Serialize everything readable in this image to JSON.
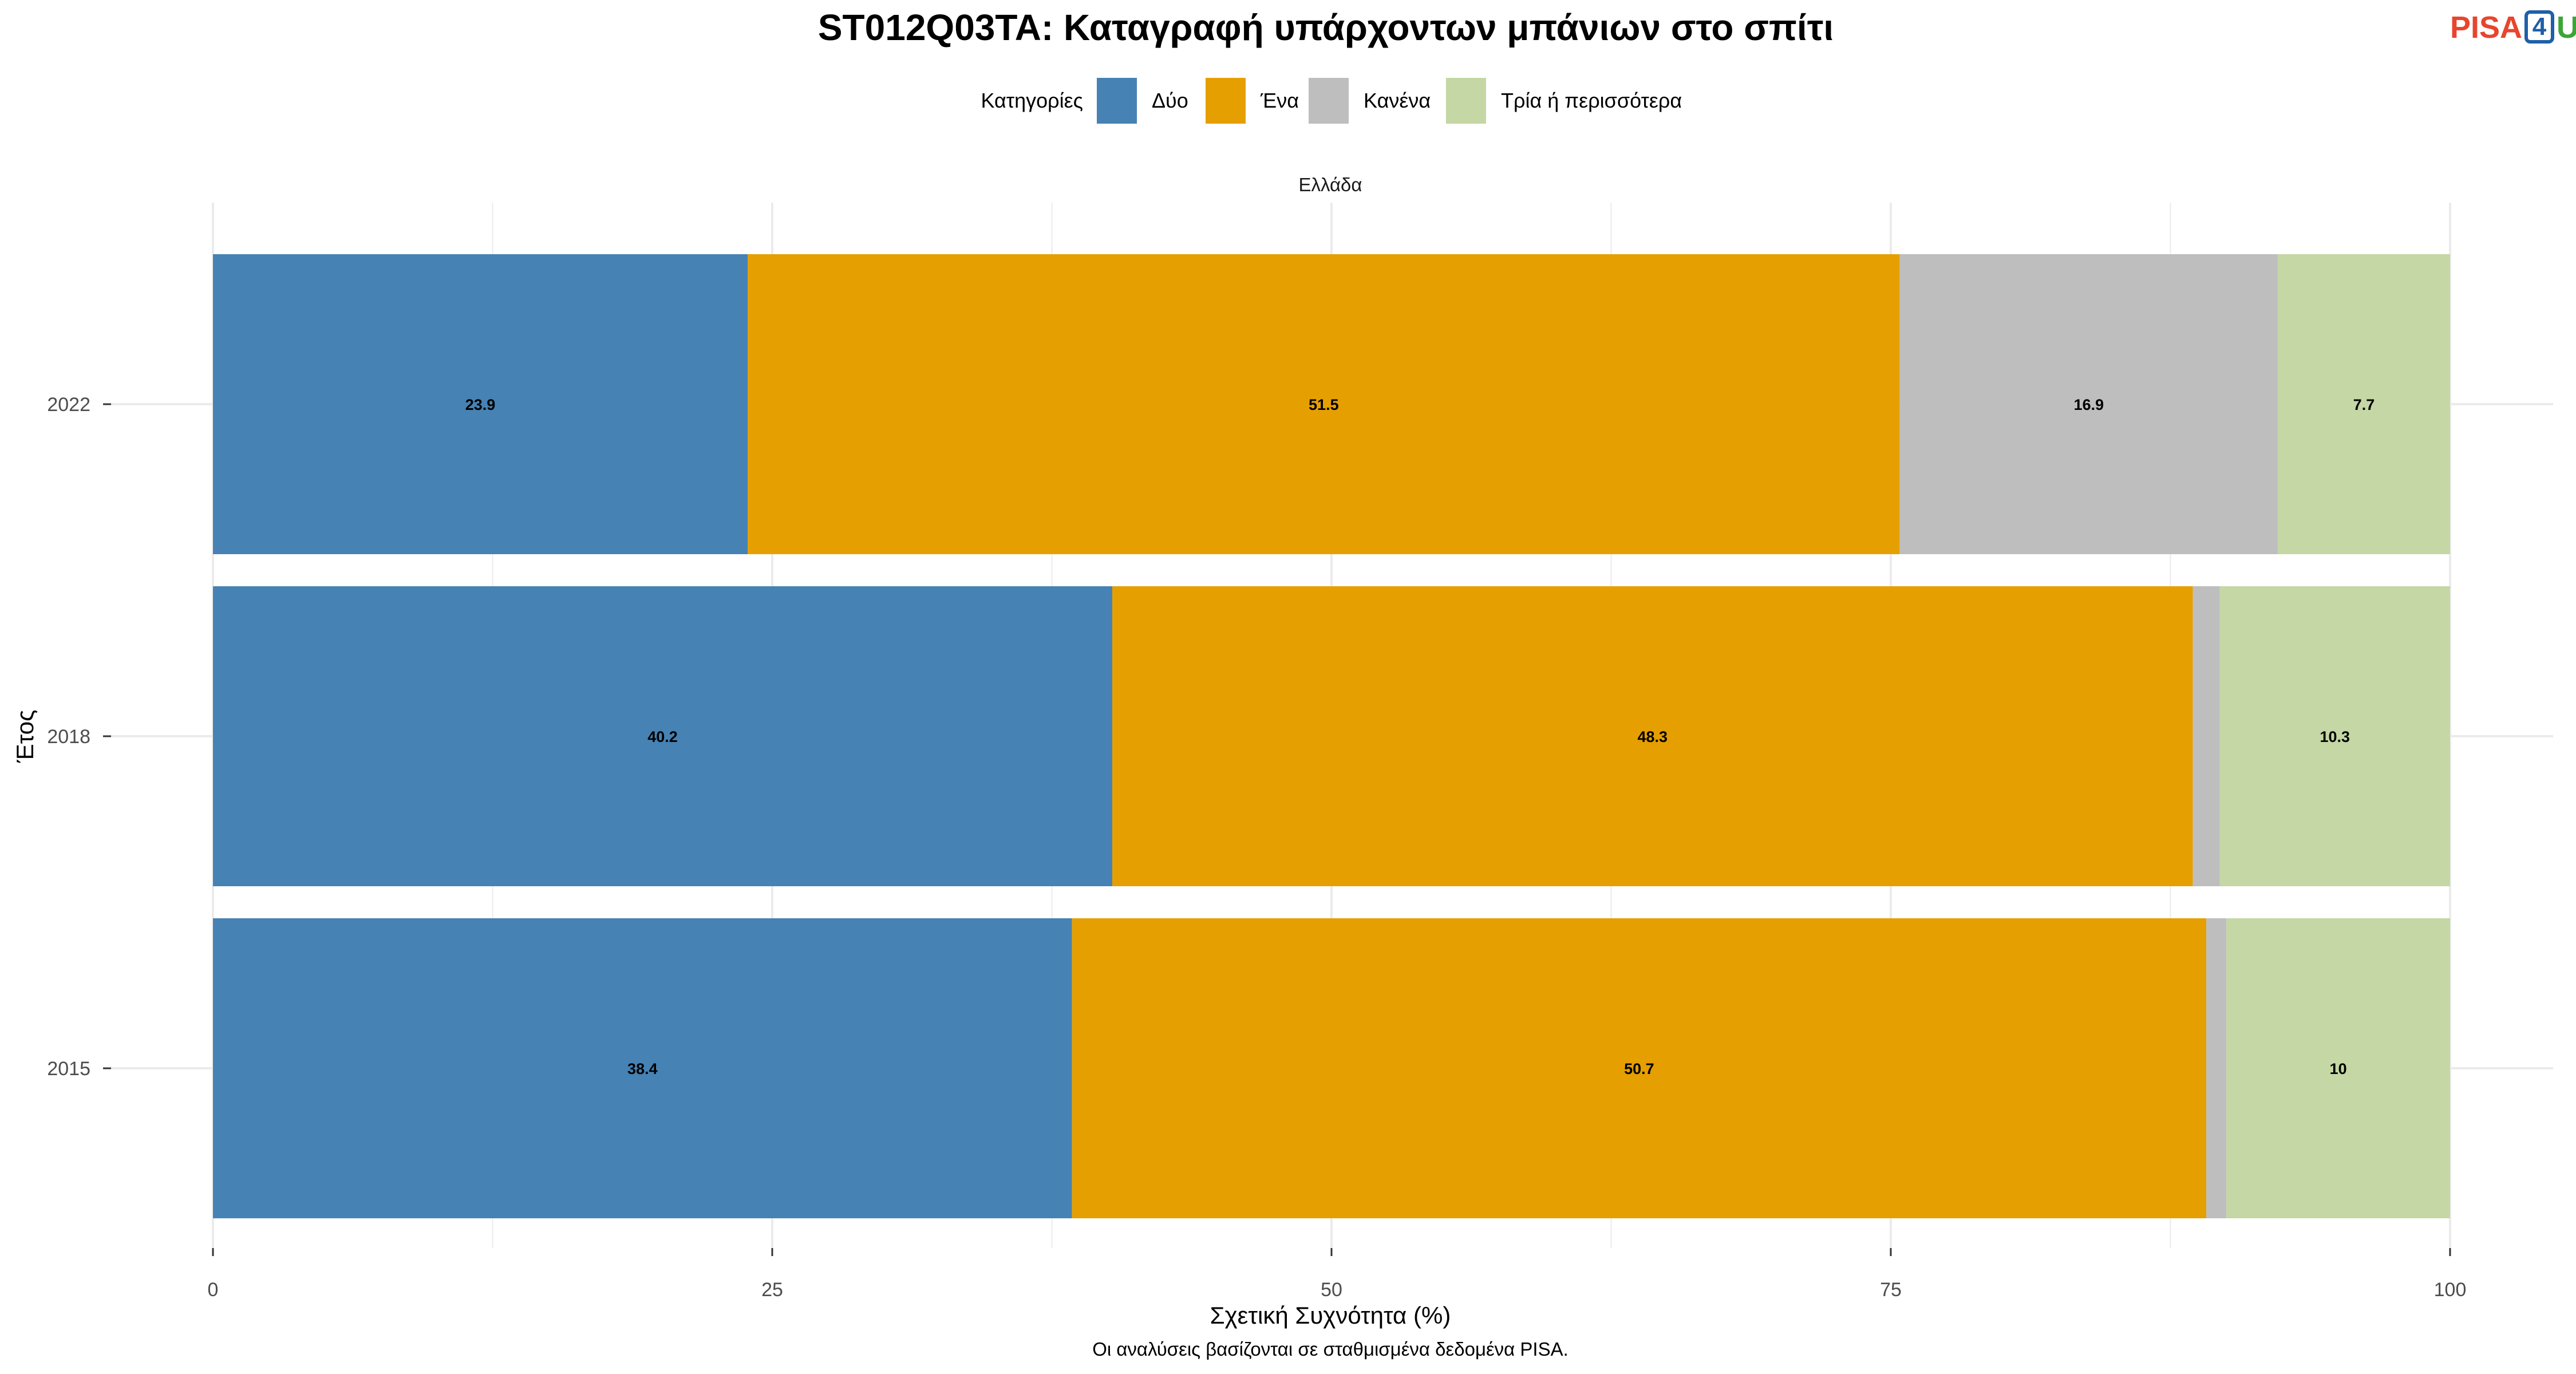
{
  "logo": {
    "part1": "PISA",
    "part2": "4",
    "part3": "U"
  },
  "colors": {
    "Δύο": "#4682b4",
    "Ένα": "#e69f00",
    "Κανένα": "#bebebe",
    "Τρία ή περισσότερα": "#c4d7a4",
    "grid": "#ebebeb",
    "axis_text": "#4d4d4d"
  },
  "chart_data": {
    "type": "bar",
    "orientation": "horizontal",
    "stacked": true,
    "title": "ST012Q03TA: Καταγραφή υπάρχοντων μπάνιων στο σπίτι",
    "facet_label": "Ελλάδα",
    "xlabel": "Σχετική Συχνότητα (%)",
    "ylabel": "Έτος",
    "caption": "Οι αναλύσεις βασίζονται σε σταθμισμένα δεδομένα PISA.",
    "legend_title": "Κατηγορίες",
    "legend_position": "top",
    "xlim": [
      0,
      100
    ],
    "x_ticks": [
      0,
      25,
      50,
      75,
      100
    ],
    "grid": true,
    "categories": [
      "2022",
      "2018",
      "2015"
    ],
    "series": [
      {
        "name": "Δύο",
        "values": [
          23.9,
          40.2,
          38.4
        ],
        "labels": [
          "23.9",
          "40.2",
          "38.4"
        ]
      },
      {
        "name": "Ένα",
        "values": [
          51.5,
          48.3,
          50.7
        ],
        "labels": [
          "51.5",
          "48.3",
          "50.7"
        ]
      },
      {
        "name": "Κανένα",
        "values": [
          16.9,
          1.2,
          0.9
        ],
        "labels": [
          "16.9",
          "",
          ""
        ]
      },
      {
        "name": "Τρία ή περισσότερα",
        "values": [
          7.7,
          10.3,
          10
        ],
        "labels": [
          "7.7",
          "10.3",
          "10"
        ]
      }
    ]
  }
}
